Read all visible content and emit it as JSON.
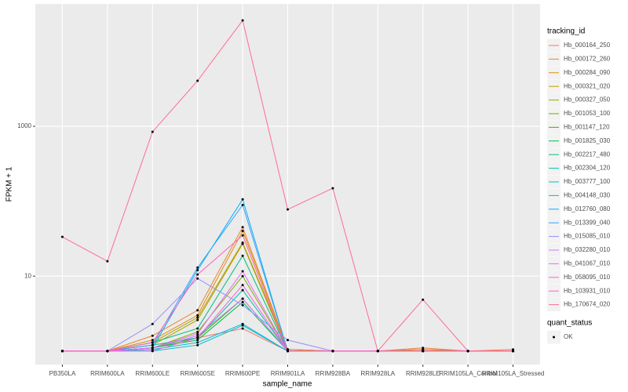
{
  "chart_data": {
    "type": "line",
    "x_label": "sample_name",
    "y_label": "FPKM + 1",
    "legend_title": "tracking_id",
    "categories": [
      "PB350LA",
      "RRIM600LA",
      "RRIM600LE",
      "RRIM600SE",
      "RRIM600PE",
      "RRIM901LA",
      "RRIM928BA",
      "RRIM928LA",
      "RRIM928LE",
      "RRIM105LA_Control",
      "RRIM105LA_Stressed"
    ],
    "log_y": true,
    "grid": true,
    "legend_position": "right",
    "ylim": [
      0.66,
      43000
    ],
    "yticks": [
      10,
      1000
    ],
    "point_legend": {
      "title": "quant_status",
      "labels": [
        "OK"
      ],
      "color": "#000000"
    },
    "series": [
      {
        "name": "Hb_000164_250",
        "color": "#F8766D",
        "values": [
          1,
          1,
          1.2,
          1.5,
          2.0,
          1,
          1,
          1,
          1,
          1,
          1
        ]
      },
      {
        "name": "Hb_000172_260",
        "color": "#EA8331",
        "values": [
          1,
          1,
          1.6,
          3.5,
          45,
          1.05,
          1,
          1,
          1.1,
          1,
          1.05
        ]
      },
      {
        "name": "Hb_000284_090",
        "color": "#D89000",
        "values": [
          1,
          1,
          1.4,
          3.0,
          40,
          1.05,
          1,
          1,
          1.05,
          1,
          1
        ]
      },
      {
        "name": "Hb_000321_020",
        "color": "#C09B00",
        "values": [
          1,
          1,
          1.3,
          2.8,
          28,
          1.05,
          1,
          1,
          1.05,
          1,
          1
        ]
      },
      {
        "name": "Hb_000327_050",
        "color": "#A3A500",
        "values": [
          1,
          1,
          1.2,
          2.6,
          27,
          1,
          1,
          1,
          1,
          1,
          1
        ]
      },
      {
        "name": "Hb_001053_100",
        "color": "#7CAE00",
        "values": [
          1,
          1,
          1.1,
          1.8,
          10,
          1,
          1,
          1,
          1,
          1,
          1
        ]
      },
      {
        "name": "Hb_001147_120",
        "color": "#39B600",
        "values": [
          1,
          1,
          1.1,
          1.5,
          5,
          1,
          1,
          1,
          1,
          1,
          1
        ]
      },
      {
        "name": "Hb_001825_030",
        "color": "#00BB4E",
        "values": [
          1,
          1,
          1.1,
          1.4,
          4.5,
          1,
          1,
          1,
          1,
          1,
          1
        ]
      },
      {
        "name": "Hb_002217_480",
        "color": "#00BF7D",
        "values": [
          1,
          1,
          1.3,
          2.0,
          18.7,
          1,
          1,
          1,
          1,
          1,
          1
        ]
      },
      {
        "name": "Hb_002304_120",
        "color": "#00C1A3",
        "values": [
          1,
          1,
          1.2,
          1.5,
          6.5,
          1,
          1,
          1,
          1,
          1,
          1
        ]
      },
      {
        "name": "Hb_003777_100",
        "color": "#00BFC4",
        "values": [
          1,
          1,
          1.0,
          1.2,
          2.2,
          1,
          1,
          1,
          1,
          1,
          1
        ]
      },
      {
        "name": "Hb_004148_030",
        "color": "#00BAE0",
        "values": [
          1,
          1,
          1.05,
          1.3,
          2.3,
          1,
          1,
          1,
          1,
          1,
          1
        ]
      },
      {
        "name": "Hb_012760_080",
        "color": "#00B0F6",
        "values": [
          1,
          1,
          1.1,
          12,
          106,
          1,
          1,
          1,
          1,
          1,
          1
        ]
      },
      {
        "name": "Hb_013399_040",
        "color": "#35A2FF",
        "values": [
          1,
          1,
          1.2,
          13,
          89,
          1,
          1,
          1,
          1,
          1,
          1
        ]
      },
      {
        "name": "Hb_015085_010",
        "color": "#9590FF",
        "values": [
          1,
          1,
          2.3,
          9.3,
          4.1,
          1.4,
          1,
          1,
          1,
          1,
          1
        ]
      },
      {
        "name": "Hb_032280_010",
        "color": "#C77CFF",
        "values": [
          1,
          1,
          1.1,
          1.6,
          5,
          1,
          1,
          1,
          1,
          1,
          1
        ]
      },
      {
        "name": "Hb_041067_010",
        "color": "#E76BF3",
        "values": [
          1,
          1,
          1.1,
          1.7,
          11.6,
          1,
          1,
          1,
          1,
          1,
          1
        ]
      },
      {
        "name": "Hb_058095_010",
        "color": "#FA62DB",
        "values": [
          1,
          1,
          1.0,
          1.5,
          7.6,
          1,
          1,
          1,
          1,
          1,
          1
        ]
      },
      {
        "name": "Hb_103931_010",
        "color": "#FF62BC",
        "values": [
          1,
          1,
          1.3,
          10.5,
          35,
          1,
          1,
          1,
          1,
          1,
          1
        ]
      },
      {
        "name": "Hb_170674_020",
        "color": "#FF6C91",
        "values": [
          33.4,
          15.8,
          845,
          4050,
          25900,
          77.6,
          149,
          1.0,
          4.85,
          1,
          1
        ]
      }
    ]
  }
}
